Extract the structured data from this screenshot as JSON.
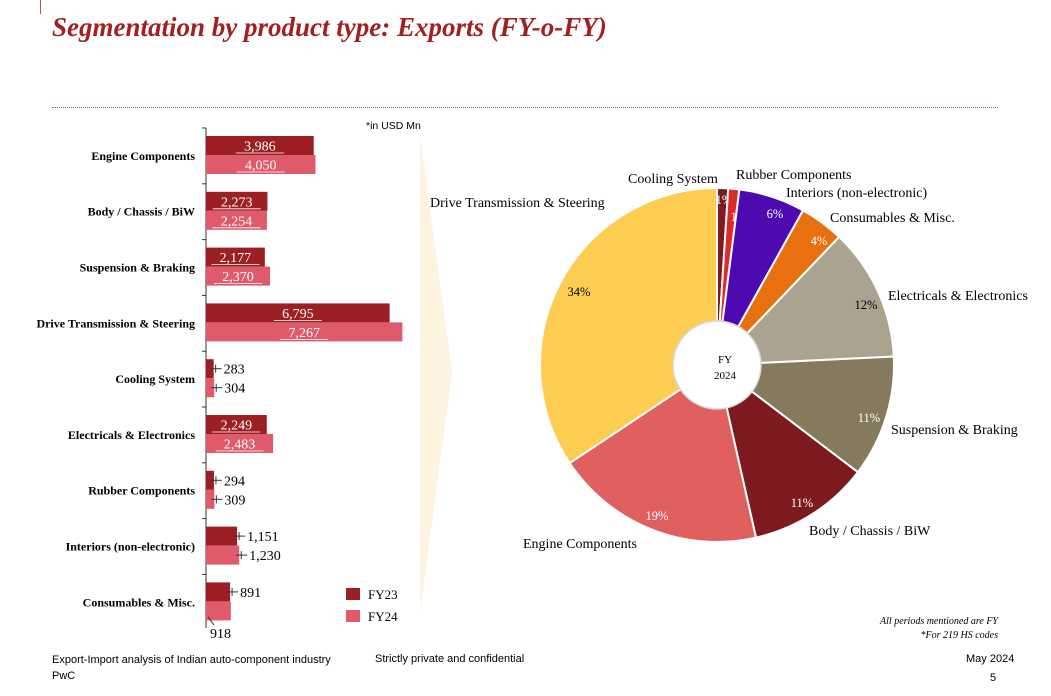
{
  "page": {
    "title": "Segmentation by product type: Exports (FY-o-FY)"
  },
  "chart_data": [
    {
      "type": "bar",
      "orientation": "horizontal",
      "note": "*in USD Mn",
      "categories": [
        "Engine Components",
        "Body / Chassis / BiW",
        "Suspension & Braking",
        "Drive Transmission & Steering",
        "Cooling System",
        "Electricals & Electronics",
        "Rubber Components",
        "Interiors (non-electronic)",
        "Consumables & Misc."
      ],
      "series": [
        {
          "name": "FY23",
          "color": "#9c1f24",
          "values": [
            3986,
            2273,
            2177,
            6795,
            283,
            2249,
            294,
            1151,
            891
          ],
          "labels": [
            "3,986",
            "2,273",
            "2,177",
            "6,795",
            "283",
            "2,249",
            "294",
            "1,151",
            "891"
          ]
        },
        {
          "name": "FY24",
          "color": "#df5a6b",
          "values": [
            4050,
            2254,
            2370,
            7267,
            304,
            2483,
            309,
            1230,
            918
          ],
          "labels": [
            "4,050",
            "2,254",
            "2,370",
            "7,267",
            "304",
            "2,483",
            "309",
            "1,230",
            "918"
          ]
        }
      ],
      "xlim": [
        0,
        7400
      ],
      "legend": "bottom-right"
    },
    {
      "type": "pie",
      "style": "donut",
      "center_label": [
        "FY",
        "2024"
      ],
      "slices": [
        {
          "label": "Cooling System",
          "value": 1,
          "pct_label": "1%",
          "color": "#7d1a1f"
        },
        {
          "label": "Rubber Components",
          "value": 1,
          "pct_label": "1%",
          "color": "#dd2b2b"
        },
        {
          "label": "Interiors (non-electronic)",
          "value": 6,
          "pct_label": "6%",
          "color": "#4e0ab0"
        },
        {
          "label": "Consumables & Misc.",
          "value": 4,
          "pct_label": "4%",
          "color": "#e8700f"
        },
        {
          "label": "Electricals & Electronics",
          "value": 12,
          "pct_label": "12%",
          "color": "#aaa38f"
        },
        {
          "label": "Suspension & Braking",
          "value": 11,
          "pct_label": "11%",
          "color": "#857a5b"
        },
        {
          "label": "Body / Chassis / BiW",
          "value": 11,
          "pct_label": "11%",
          "color": "#7d1a1f"
        },
        {
          "label": "Engine Components",
          "value": 19,
          "pct_label": "19%",
          "color": "#e06060"
        },
        {
          "label": "Drive Transmission & Steering",
          "value": 34,
          "pct_label": "34%",
          "color": "#fccd50"
        }
      ]
    }
  ],
  "notes": {
    "line1": "All periods mentioned are FY",
    "line2": "*For 219 HS codes"
  },
  "footer": {
    "left_line1": "Export-Import analysis of Indian auto-component industry",
    "left_line2": "PwC",
    "center": "Strictly private and confidential",
    "date": "May 2024",
    "page_number": "5"
  }
}
